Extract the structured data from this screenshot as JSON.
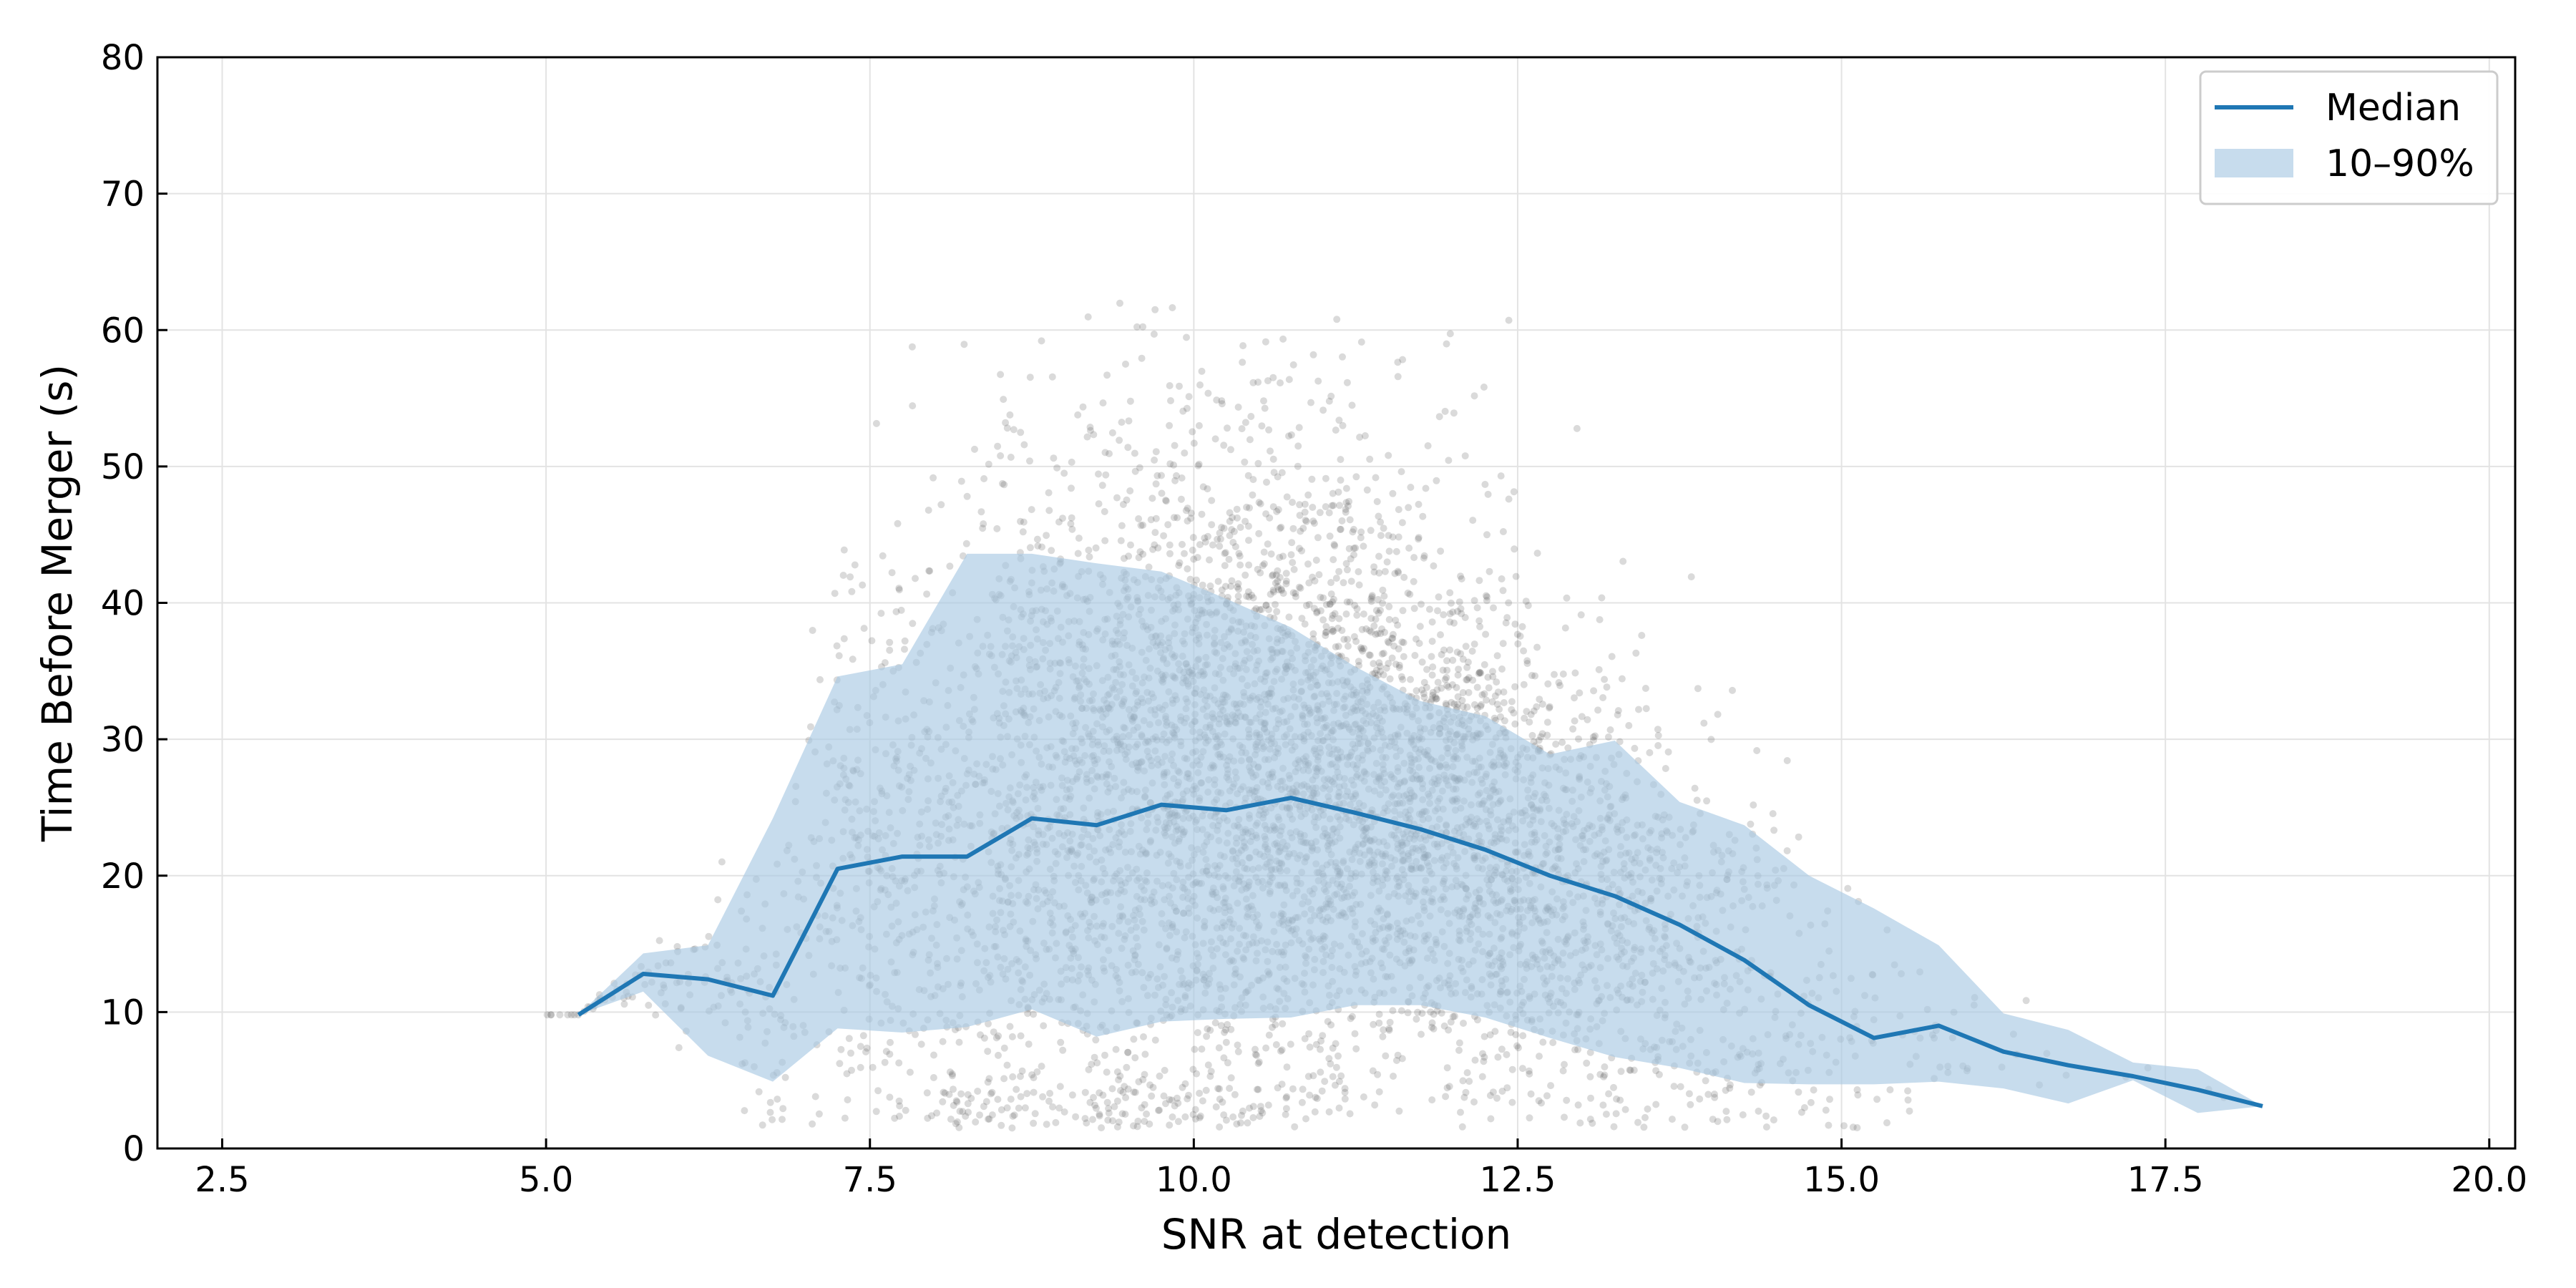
{
  "chart_data": {
    "type": "scatter",
    "xlabel": "SNR at detection",
    "ylabel": "Time Before Merger (s)",
    "xlim": [
      2.0,
      20.2
    ],
    "ylim": [
      0,
      80
    ],
    "xticks": [
      "2.5",
      "5.0",
      "7.5",
      "10.0",
      "12.5",
      "15.0",
      "17.5",
      "20.0"
    ],
    "yticks": [
      "0",
      "10",
      "20",
      "30",
      "40",
      "50",
      "60",
      "70",
      "80"
    ],
    "grid": true,
    "legend_position": "top-right",
    "colors": {
      "median": "#1f77b4",
      "band": "#a9c9e3",
      "points": "#555555"
    },
    "series": [
      {
        "name": "Median",
        "x": [
          5.25,
          5.75,
          6.25,
          6.75,
          7.25,
          7.75,
          8.25,
          8.75,
          9.25,
          9.75,
          10.25,
          10.75,
          11.25,
          11.75,
          12.25,
          12.75,
          13.25,
          13.75,
          14.25,
          14.75,
          15.25,
          15.75,
          16.25,
          16.75,
          17.25,
          17.75,
          18.25
        ],
        "values": [
          9.8,
          12.8,
          12.4,
          11.2,
          20.5,
          21.4,
          21.4,
          24.2,
          23.7,
          25.2,
          24.8,
          25.7,
          24.6,
          23.4,
          21.9,
          20.0,
          18.5,
          16.4,
          13.8,
          10.5,
          8.1,
          9.0,
          7.1,
          6.1,
          5.3,
          4.3,
          3.1
        ]
      },
      {
        "name": "10–90%",
        "x": [
          5.25,
          5.75,
          6.25,
          6.75,
          7.25,
          7.75,
          8.25,
          8.75,
          9.25,
          9.75,
          10.25,
          10.75,
          11.25,
          11.75,
          12.25,
          12.75,
          13.25,
          13.75,
          14.25,
          14.75,
          15.25,
          15.75,
          16.25,
          16.75,
          17.25,
          17.75,
          18.25
        ],
        "lower": [
          9.8,
          11.5,
          6.8,
          4.9,
          8.8,
          8.5,
          8.9,
          10.2,
          8.2,
          9.3,
          9.5,
          9.6,
          10.5,
          10.5,
          9.6,
          8.1,
          6.7,
          5.9,
          4.8,
          4.7,
          4.7,
          4.9,
          4.4,
          3.3,
          5.0,
          2.6,
          3.1
        ],
        "upper": [
          9.8,
          14.3,
          14.9,
          24.2,
          34.6,
          35.5,
          43.6,
          43.6,
          42.9,
          42.3,
          40.3,
          38.2,
          35.3,
          32.8,
          31.7,
          28.9,
          29.9,
          25.4,
          23.7,
          20.0,
          17.6,
          14.9,
          9.9,
          8.7,
          6.3,
          5.8,
          3.1
        ]
      }
    ],
    "scatter_points": {
      "description_count": 6000,
      "x_center": 10.6,
      "y_max": 62.3
    }
  }
}
